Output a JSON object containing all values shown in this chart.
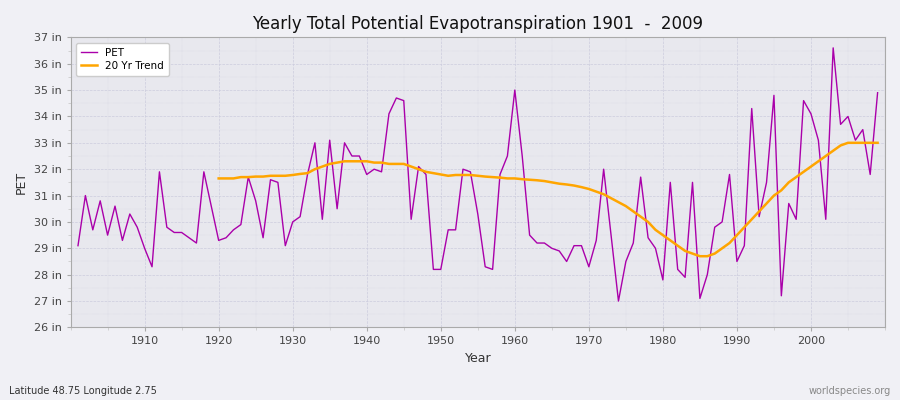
{
  "title": "Yearly Total Potential Evapotranspiration 1901  -  2009",
  "xlabel": "Year",
  "ylabel": "PET",
  "subtitle_left": "Latitude 48.75 Longitude 2.75",
  "subtitle_right": "worldspecies.org",
  "pet_color": "#aa00aa",
  "trend_color": "#ffa500",
  "background_color": "#f0f0f5",
  "plot_bg_color": "#e8e8ee",
  "grid_color": "#ccccdd",
  "ylim_min": 26,
  "ylim_max": 37,
  "yticks": [
    26,
    27,
    28,
    29,
    30,
    31,
    32,
    33,
    34,
    35,
    36,
    37
  ],
  "years": [
    1901,
    1902,
    1903,
    1904,
    1905,
    1906,
    1907,
    1908,
    1909,
    1910,
    1911,
    1912,
    1913,
    1914,
    1915,
    1916,
    1917,
    1918,
    1919,
    1920,
    1921,
    1922,
    1923,
    1924,
    1925,
    1926,
    1927,
    1928,
    1929,
    1930,
    1931,
    1932,
    1933,
    1934,
    1935,
    1936,
    1937,
    1938,
    1939,
    1940,
    1941,
    1942,
    1943,
    1944,
    1945,
    1946,
    1947,
    1948,
    1949,
    1950,
    1951,
    1952,
    1953,
    1954,
    1955,
    1956,
    1957,
    1958,
    1959,
    1960,
    1961,
    1962,
    1963,
    1964,
    1965,
    1966,
    1967,
    1968,
    1969,
    1970,
    1971,
    1972,
    1973,
    1974,
    1975,
    1976,
    1977,
    1978,
    1979,
    1980,
    1981,
    1982,
    1983,
    1984,
    1985,
    1986,
    1987,
    1988,
    1989,
    1990,
    1991,
    1992,
    1993,
    1994,
    1995,
    1996,
    1997,
    1998,
    1999,
    2000,
    2001,
    2002,
    2003,
    2004,
    2005,
    2006,
    2007,
    2008,
    2009
  ],
  "pet_values": [
    29.1,
    31.0,
    29.7,
    30.8,
    29.5,
    30.6,
    29.3,
    30.3,
    29.8,
    29.0,
    28.3,
    31.9,
    29.8,
    29.6,
    29.6,
    29.4,
    29.2,
    31.9,
    30.6,
    29.3,
    29.4,
    29.7,
    29.9,
    31.7,
    30.8,
    29.4,
    31.6,
    31.5,
    29.1,
    30.0,
    30.2,
    31.8,
    33.0,
    30.1,
    33.1,
    30.5,
    33.0,
    32.5,
    32.5,
    31.8,
    32.0,
    31.9,
    34.1,
    34.7,
    34.6,
    30.1,
    32.1,
    31.8,
    28.2,
    28.2,
    29.7,
    29.7,
    32.0,
    31.9,
    30.3,
    28.3,
    28.2,
    31.8,
    32.5,
    35.0,
    32.5,
    29.5,
    29.2,
    29.2,
    29.0,
    28.9,
    28.5,
    29.1,
    29.1,
    28.3,
    29.3,
    32.0,
    29.5,
    27.0,
    28.5,
    29.2,
    31.7,
    29.4,
    29.0,
    27.8,
    31.5,
    28.2,
    27.9,
    31.5,
    27.1,
    28.0,
    29.8,
    30.0,
    31.8,
    28.5,
    29.1,
    34.3,
    30.2,
    31.5,
    34.8,
    27.2,
    30.7,
    30.1,
    34.6,
    34.1,
    33.1,
    30.1,
    36.6,
    33.7,
    34.0,
    33.1,
    33.5,
    31.8,
    34.9
  ],
  "trend_years": [
    1920,
    1921,
    1922,
    1923,
    1924,
    1925,
    1926,
    1927,
    1928,
    1929,
    1930,
    1931,
    1932,
    1933,
    1934,
    1935,
    1936,
    1937,
    1938,
    1939,
    1940,
    1941,
    1942,
    1943,
    1944,
    1945,
    1946,
    1947,
    1948,
    1949,
    1950,
    1951,
    1952,
    1953,
    1954,
    1955,
    1956,
    1957,
    1958,
    1958,
    1959,
    1960,
    1961,
    1962,
    1963,
    1964,
    1965,
    1966,
    1967,
    1968,
    1969,
    1970,
    1971,
    1972,
    1973,
    1974,
    1975,
    1976,
    1977,
    1978,
    1979,
    1980,
    1981,
    1982,
    1983,
    1984,
    1985,
    1986,
    1987,
    1988,
    1989,
    1990,
    1991,
    1992,
    1993,
    1994,
    1995,
    1996,
    1997,
    1998,
    1999,
    2000,
    2001,
    2002,
    2003,
    2004,
    2005,
    2006,
    2007,
    2008,
    2009
  ],
  "trend_values": [
    31.65,
    31.65,
    31.65,
    31.7,
    31.7,
    31.72,
    31.72,
    31.75,
    31.75,
    31.75,
    31.78,
    31.82,
    31.85,
    32.0,
    32.1,
    32.2,
    32.25,
    32.3,
    32.3,
    32.3,
    32.3,
    32.25,
    32.25,
    32.2,
    32.2,
    32.2,
    32.1,
    32.0,
    31.9,
    31.85,
    31.8,
    31.75,
    31.78,
    31.78,
    31.78,
    31.75,
    31.72,
    31.7,
    31.68,
    31.68,
    31.65,
    31.65,
    31.62,
    31.6,
    31.58,
    31.55,
    31.5,
    31.45,
    31.42,
    31.38,
    31.32,
    31.25,
    31.15,
    31.05,
    30.9,
    30.75,
    30.6,
    30.4,
    30.2,
    30.0,
    29.7,
    29.5,
    29.3,
    29.1,
    28.9,
    28.8,
    28.7,
    28.7,
    28.8,
    29.0,
    29.2,
    29.5,
    29.8,
    30.1,
    30.4,
    30.7,
    31.0,
    31.2,
    31.5,
    31.7,
    31.9,
    32.1,
    32.3,
    32.5,
    32.7,
    32.9,
    33.0,
    33.0,
    33.0,
    33.0,
    33.0
  ]
}
